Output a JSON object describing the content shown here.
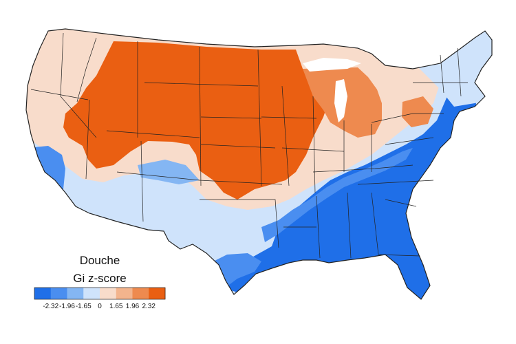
{
  "map": {
    "title": "Douche",
    "subtitle": "Gi z-score"
  },
  "legend": {
    "colors": [
      "#1f6fe8",
      "#4a8ef0",
      "#84b6f3",
      "#cfe3fb",
      "#f8dccb",
      "#f3b48d",
      "#ee8a4f",
      "#ea5f12"
    ],
    "ticks": [
      "-2.32",
      "-1.96",
      "-1.65",
      "0",
      "1.65",
      "1.96",
      "2.32"
    ]
  },
  "colors": {
    "background": "#ffffff",
    "border": "#222222",
    "deep_blue": "#1f6fe8",
    "mid_blue": "#4a8ef0",
    "light_blue": "#cfe3fb",
    "light_orange": "#f8dccb",
    "mid_orange": "#ee8a4f",
    "deep_orange": "#ea5f12"
  }
}
